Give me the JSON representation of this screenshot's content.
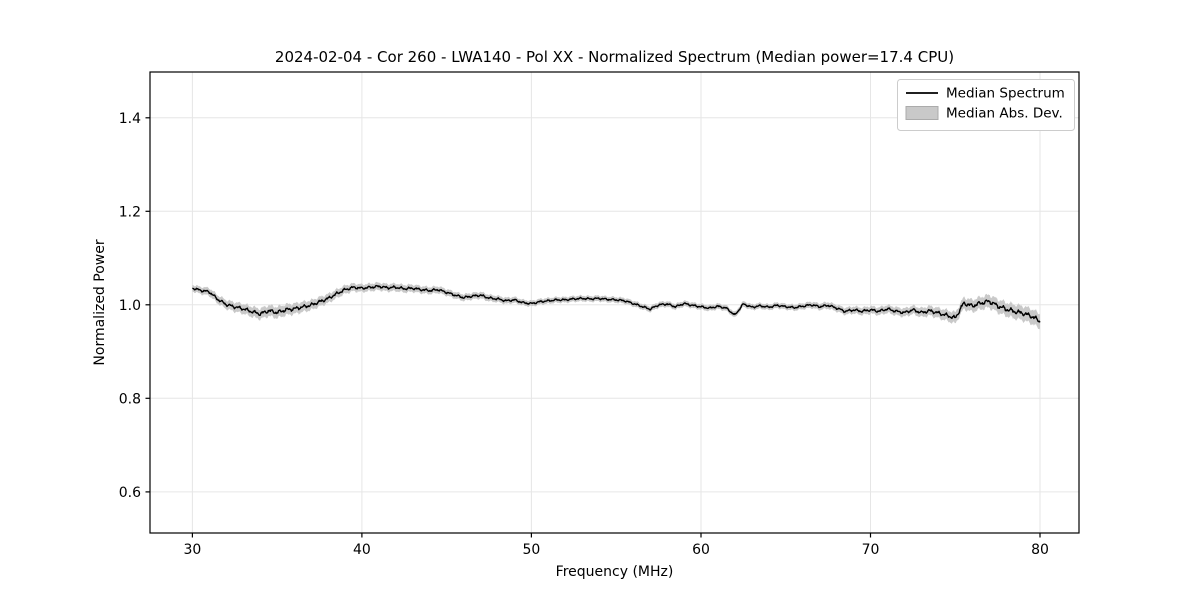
{
  "chart_data": {
    "type": "line",
    "title": "2024-02-04 - Cor 260 - LWA140 - Pol XX - Normalized Spectrum (Median power=17.4 CPU)",
    "xlabel": "Frequency (MHz)",
    "ylabel": "Normalized Power",
    "axes": {
      "xlim": [
        27.5,
        82.3
      ],
      "ylim": [
        0.512,
        1.498
      ],
      "xticks": {
        "values": [
          30,
          40,
          50,
          60,
          70,
          80
        ],
        "labels": [
          "30",
          "40",
          "50",
          "60",
          "70",
          "80"
        ]
      },
      "yticks": {
        "values": [
          0.6,
          0.8,
          1.0,
          1.2,
          1.4
        ],
        "labels": [
          "0.6",
          "0.8",
          "1.0",
          "1.2",
          "1.4"
        ]
      },
      "grid": true,
      "grid_color": "#e6e6e6",
      "spine_color": "#000000"
    },
    "legend": {
      "position": "upper right",
      "frame_color": "#cccccc",
      "items": [
        {
          "label": "Median Spectrum",
          "type": "line",
          "color": "#000000"
        },
        {
          "label": "Median Abs. Dev.",
          "type": "patch",
          "color": "#c9c9c9"
        }
      ]
    },
    "series": [
      {
        "name": "Median Spectrum",
        "type": "line",
        "color": "#000000",
        "x_start": 30,
        "x_step": 0.5,
        "y": [
          1.036,
          1.031,
          1.028,
          1.012,
          1.001,
          0.996,
          0.992,
          0.986,
          0.981,
          0.988,
          0.984,
          0.99,
          0.992,
          0.996,
          1.0,
          1.007,
          1.014,
          1.024,
          1.033,
          1.038,
          1.036,
          1.038,
          1.04,
          1.037,
          1.038,
          1.035,
          1.036,
          1.033,
          1.031,
          1.033,
          1.027,
          1.021,
          1.016,
          1.019,
          1.021,
          1.015,
          1.013,
          1.009,
          1.011,
          1.005,
          1.003,
          1.007,
          1.009,
          1.011,
          1.011,
          1.013,
          1.014,
          1.013,
          1.014,
          1.012,
          1.011,
          1.009,
          1.003,
          0.997,
          0.991,
          1.0,
          1.002,
          0.996,
          1.003,
          0.999,
          0.996,
          0.993,
          0.997,
          0.993,
          0.978,
          1.002,
          0.995,
          0.998,
          0.995,
          0.999,
          0.996,
          0.994,
          0.997,
          1.0,
          0.996,
          0.999,
          0.993,
          0.986,
          0.989,
          0.986,
          0.989,
          0.986,
          0.991,
          0.986,
          0.983,
          0.989,
          0.983,
          0.987,
          0.982,
          0.977,
          0.971,
          1.003,
          0.997,
          1.003,
          1.007,
          0.997,
          0.99,
          0.985,
          0.981,
          0.975,
          0.964
        ]
      },
      {
        "name": "Median Abs. Dev.",
        "type": "band_halfwidth",
        "color": "#c9c9c9",
        "x": [
          30,
          32.5,
          35,
          37.5,
          40,
          42.5,
          45,
          47.5,
          50,
          52.5,
          55,
          57.5,
          60,
          62.5,
          65,
          67.5,
          70,
          72.5,
          75,
          77.5,
          80
        ],
        "y": [
          0.007,
          0.01,
          0.012,
          0.01,
          0.008,
          0.008,
          0.007,
          0.007,
          0.006,
          0.006,
          0.006,
          0.006,
          0.006,
          0.006,
          0.006,
          0.007,
          0.008,
          0.009,
          0.012,
          0.014,
          0.016
        ]
      }
    ]
  }
}
